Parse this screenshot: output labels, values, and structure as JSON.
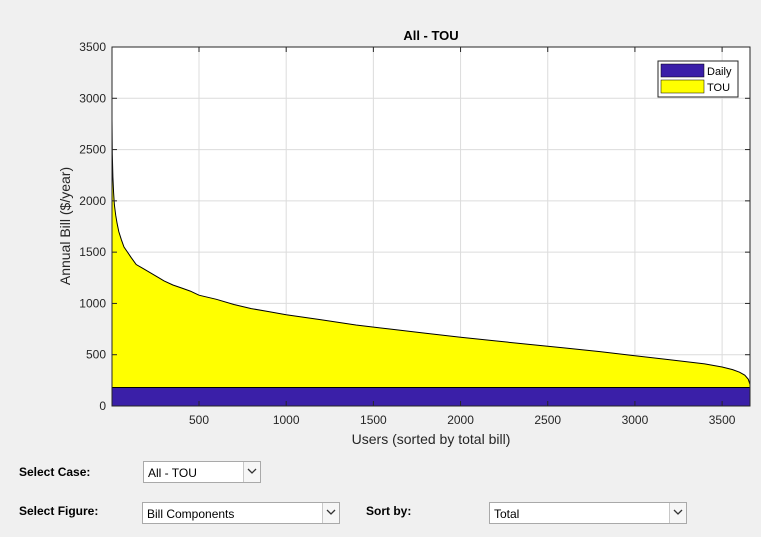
{
  "chart_data": {
    "type": "area",
    "title": "All - TOU",
    "xlabel": "Users (sorted by total bill)",
    "ylabel": "Annual Bill ($/year)",
    "xlim": [
      1,
      3660
    ],
    "ylim": [
      0,
      3500
    ],
    "xticks": [
      500,
      1000,
      1500,
      2000,
      2500,
      3000,
      3500
    ],
    "yticks": [
      0,
      500,
      1000,
      1500,
      2000,
      2500,
      3000,
      3500
    ],
    "grid": true,
    "legend_position": "top-right",
    "stacked": true,
    "x": [
      1,
      3,
      6,
      10,
      15,
      22,
      30,
      40,
      55,
      70,
      90,
      110,
      140,
      180,
      220,
      260,
      300,
      350,
      400,
      450,
      500,
      600,
      700,
      800,
      900,
      1000,
      1200,
      1400,
      1600,
      1800,
      2000,
      2200,
      2400,
      2600,
      2800,
      3000,
      3200,
      3400,
      3500,
      3560,
      3600,
      3630,
      3650,
      3660
    ],
    "series": [
      {
        "name": "Daily",
        "color": "#3a1fa8",
        "values": [
          180,
          180,
          180,
          180,
          180,
          180,
          180,
          180,
          180,
          180,
          180,
          180,
          180,
          180,
          180,
          180,
          180,
          180,
          180,
          180,
          180,
          180,
          180,
          180,
          180,
          180,
          180,
          180,
          180,
          180,
          180,
          180,
          180,
          180,
          180,
          180,
          180,
          180,
          180,
          180,
          180,
          180,
          180,
          180
        ]
      },
      {
        "name": "TOU",
        "color": "#ffff00",
        "values": [
          2620,
          2280,
          2050,
          1900,
          1780,
          1680,
          1600,
          1520,
          1440,
          1370,
          1320,
          1270,
          1200,
          1160,
          1120,
          1080,
          1040,
          1000,
          970,
          940,
          900,
          860,
          810,
          770,
          740,
          710,
          660,
          610,
          570,
          530,
          490,
          455,
          420,
          385,
          350,
          310,
          270,
          230,
          200,
          175,
          150,
          120,
          80,
          30
        ]
      }
    ]
  },
  "controls": {
    "case_label": "Select Case:",
    "case_value": "All - TOU",
    "figure_label": "Select Figure:",
    "figure_value": "Bill Components",
    "sort_label": "Sort by:",
    "sort_value": "Total"
  }
}
